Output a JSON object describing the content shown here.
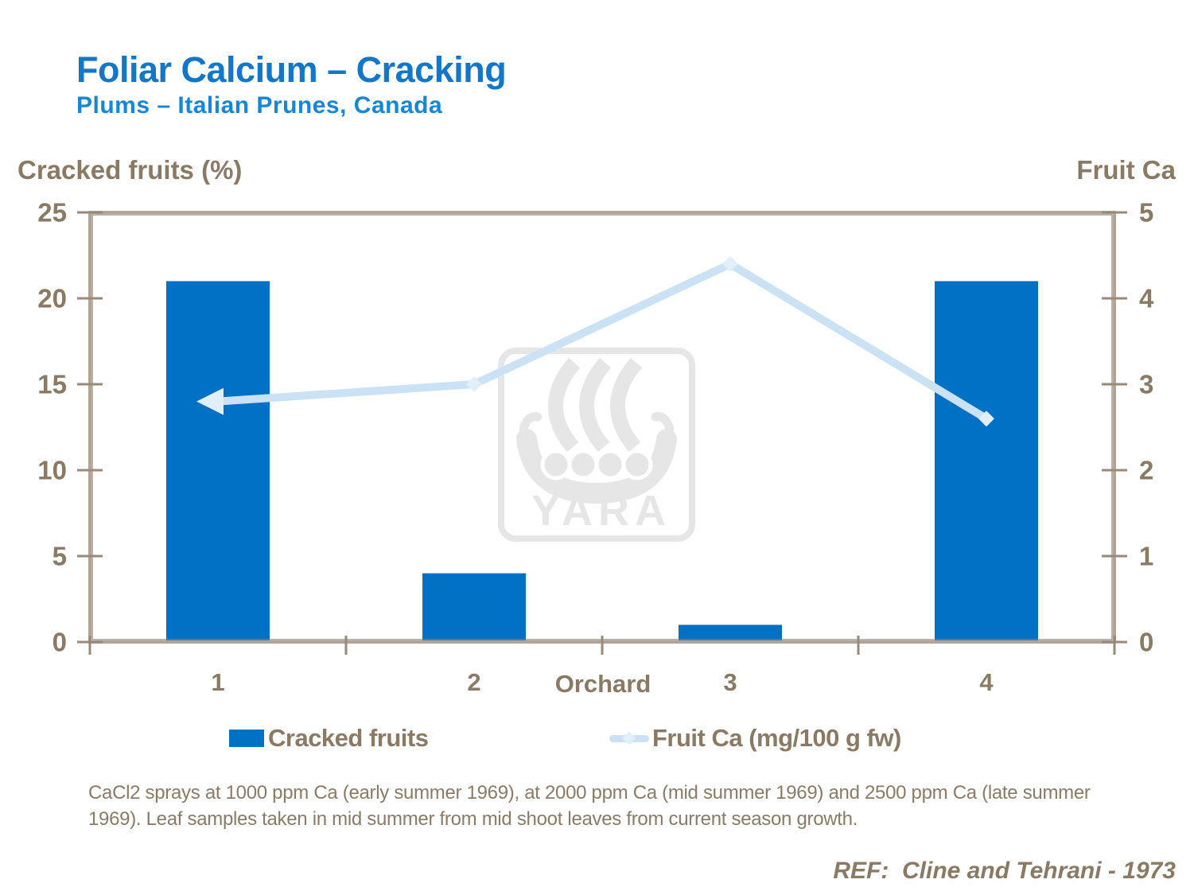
{
  "header": {
    "title": "Foliar Calcium – Cracking",
    "subtitle": "Plums – Italian Prunes, Canada"
  },
  "watermark": {
    "text": "YARA"
  },
  "footnote": "CaCl2 sprays at 1000 ppm Ca (early summer 1969), at 2000 ppm Ca (mid summer 1969) and 2500 ppm Ca (late summer 1969). Leaf samples taken in mid summer from mid shoot leaves from current season growth.",
  "reference": "REF:  Cline and Tehrani - 1973",
  "chart_data": {
    "type": "bar",
    "categories": [
      "1",
      "2",
      "3",
      "4"
    ],
    "x_axis_title": "Orchard",
    "left_axis": {
      "title": "Cracked fruits (%)",
      "ticks": [
        0,
        5,
        10,
        15,
        20,
        25
      ],
      "range": [
        0,
        25
      ]
    },
    "right_axis": {
      "title": "Fruit Ca",
      "ticks": [
        0,
        1,
        2,
        3,
        4,
        5
      ],
      "range": [
        0,
        5
      ]
    },
    "series": [
      {
        "name": "Cracked fruits",
        "type": "bar",
        "axis": "left",
        "values": [
          21,
          4,
          1,
          21
        ],
        "color": "#0071c5"
      },
      {
        "name": "Fruit Ca (mg/100 g fw)",
        "type": "line",
        "axis": "right",
        "values": [
          2.8,
          3.0,
          4.4,
          2.6
        ],
        "color": "#cbe2f5"
      }
    ],
    "legend_position": "bottom",
    "grid": false,
    "frame_color": "#b2a597",
    "tick_color": "#9a8a7a",
    "text_color": "#8a7a64"
  }
}
